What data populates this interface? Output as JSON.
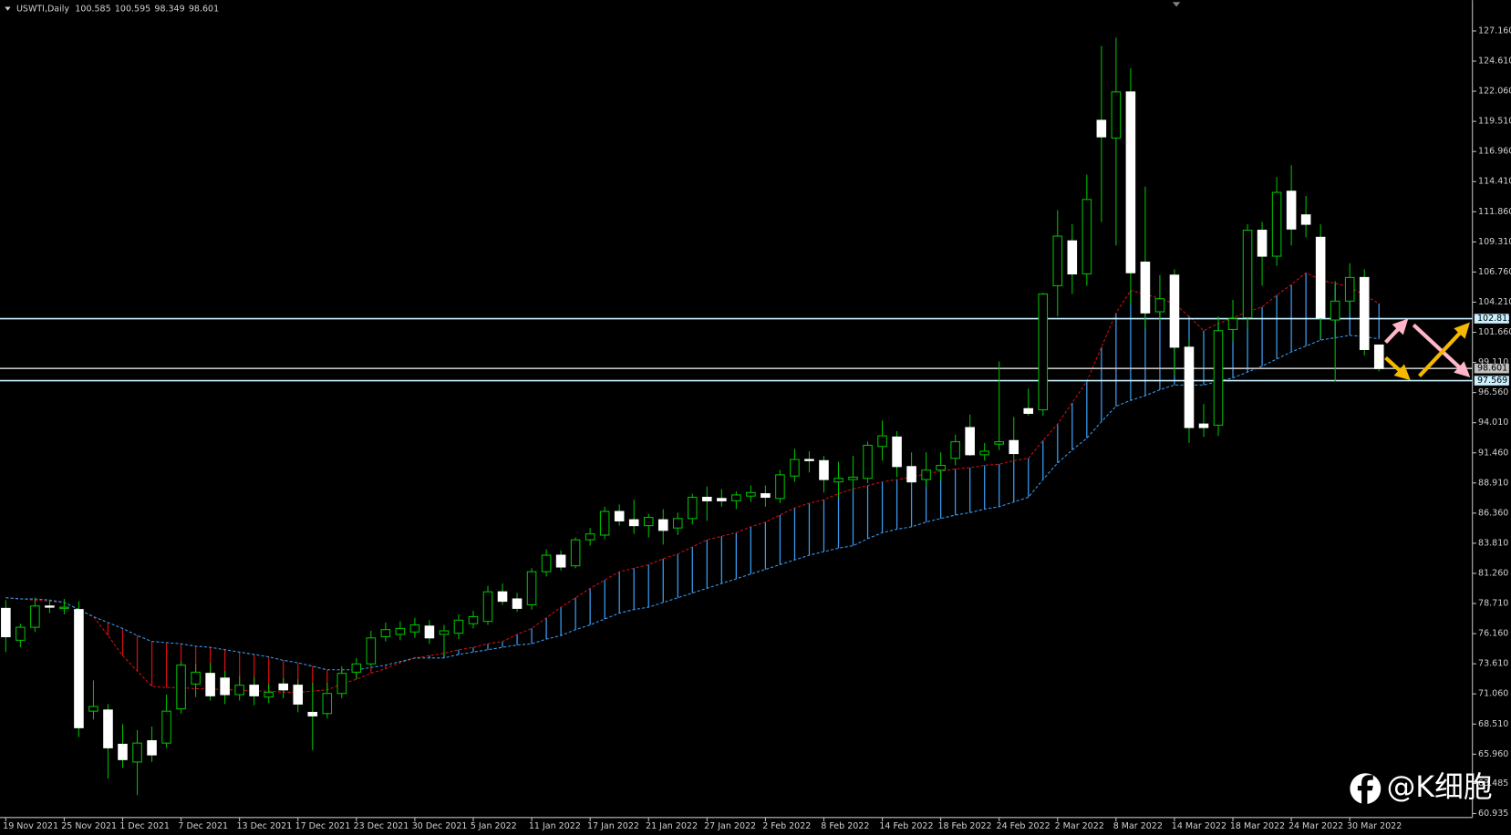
{
  "chart_data": {
    "type": "candlestick",
    "title": "USWTI,Daily",
    "watermark": "@K细胞",
    "categories": [
      "19 Nov 2021",
      null,
      null,
      null,
      "25 Nov 2021",
      null,
      null,
      null,
      "1 Dec 2021",
      null,
      null,
      null,
      "7 Dec 2021",
      null,
      null,
      null,
      "13 Dec 2021",
      null,
      null,
      null,
      "17 Dec 2021",
      null,
      null,
      null,
      "23 Dec 2021",
      null,
      null,
      null,
      "30 Dec 2021",
      null,
      null,
      null,
      "5 Jan 2022",
      null,
      null,
      null,
      "11 Jan 2022",
      null,
      null,
      null,
      "17 Jan 2022",
      null,
      null,
      null,
      "21 Jan 2022",
      null,
      null,
      null,
      "27 Jan 2022",
      null,
      null,
      null,
      "2 Feb 2022",
      null,
      null,
      null,
      "8 Feb 2022",
      null,
      null,
      null,
      "14 Feb 2022",
      null,
      null,
      null,
      "18 Feb 2022",
      null,
      null,
      null,
      "24 Feb 2022",
      null,
      null,
      null,
      "2 Mar 2022",
      null,
      null,
      null,
      "8 Mar 2022",
      null,
      null,
      null,
      "14 Mar 2022",
      null,
      null,
      null,
      "18 Mar 2022",
      null,
      null,
      null,
      "24 Mar 2022",
      null,
      null,
      null,
      "30 Mar 2022",
      null,
      null
    ],
    "open": [
      78.3,
      75.6,
      76.7,
      78.5,
      78.3,
      78.2,
      69.6,
      69.7,
      66.8,
      65.3,
      67.1,
      66.9,
      69.8,
      71.9,
      72.8,
      72.4,
      71.0,
      71.8,
      70.8,
      71.9,
      71.8,
      69.5,
      69.4,
      71.1,
      72.9,
      73.6,
      75.9,
      76.1,
      76.3,
      76.8,
      76.1,
      76.2,
      77.0,
      77.2,
      79.7,
      79.1,
      78.6,
      81.4,
      82.8,
      81.9,
      84.1,
      84.5,
      86.5,
      85.8,
      85.3,
      85.8,
      85.1,
      85.9,
      87.7,
      87.6,
      87.4,
      87.8,
      88.0,
      87.6,
      89.5,
      90.9,
      90.8,
      89.0,
      89.2,
      89.3,
      92.0,
      92.8,
      90.3,
      89.2,
      90.0,
      91.0,
      93.6,
      91.3,
      92.2,
      92.5,
      95.2,
      95.1,
      105.6,
      109.4,
      106.6,
      119.6,
      118.1,
      122.0,
      107.6,
      103.4,
      106.5,
      100.4,
      93.9,
      93.8,
      101.9,
      102.9,
      110.3,
      108.1,
      113.6,
      111.6,
      109.7,
      102.7,
      104.3,
      106.3,
      100.585
    ],
    "high": [
      79.0,
      77.0,
      79.2,
      79.0,
      79.1,
      78.9,
      72.2,
      70.2,
      68.5,
      68.0,
      68.3,
      71.0,
      73.8,
      73.6,
      73.7,
      73.0,
      72.6,
      72.5,
      71.9,
      72.4,
      72.3,
      72.0,
      72.0,
      73.4,
      74.1,
      76.4,
      77.1,
      77.2,
      77.5,
      77.3,
      76.9,
      77.8,
      78.1,
      80.2,
      80.4,
      79.6,
      81.7,
      83.3,
      83.2,
      84.3,
      85.1,
      86.9,
      87.1,
      87.5,
      86.3,
      86.7,
      86.4,
      88.0,
      88.6,
      88.4,
      88.2,
      88.7,
      88.7,
      90.0,
      91.8,
      91.6,
      91.2,
      90.7,
      91.2,
      92.4,
      94.2,
      93.3,
      91.5,
      91.5,
      91.5,
      93.0,
      94.7,
      92.3,
      99.2,
      94.5,
      96.9,
      105.0,
      112.0,
      110.8,
      115.0,
      125.9,
      126.6,
      124.0,
      114.0,
      106.5,
      107.0,
      101.0,
      95.6,
      103.0,
      104.4,
      110.8,
      111.0,
      114.8,
      115.8,
      113.2,
      110.8,
      106.0,
      107.5,
      107.0,
      100.595
    ],
    "low": [
      74.6,
      75.0,
      76.3,
      77.9,
      77.8,
      67.4,
      68.9,
      63.9,
      64.8,
      62.5,
      65.3,
      66.5,
      69.4,
      70.8,
      70.5,
      70.2,
      70.5,
      70.1,
      70.3,
      70.7,
      69.5,
      66.3,
      69.0,
      70.7,
      72.3,
      73.4,
      75.5,
      75.6,
      75.8,
      75.3,
      74.3,
      75.7,
      76.6,
      76.9,
      78.6,
      78.0,
      78.2,
      81.0,
      81.5,
      81.7,
      83.6,
      84.2,
      85.3,
      84.6,
      84.3,
      83.7,
      84.5,
      85.4,
      85.7,
      86.9,
      86.7,
      87.3,
      86.9,
      87.2,
      89.0,
      89.8,
      88.1,
      87.7,
      88.3,
      88.9,
      90.8,
      89.4,
      88.8,
      88.6,
      89.1,
      90.4,
      91.2,
      90.8,
      91.7,
      90.8,
      94.6,
      94.6,
      103.0,
      104.9,
      105.6,
      111.0,
      109.0,
      104.0,
      102.0,
      102.6,
      98.0,
      92.3,
      92.8,
      92.9,
      100.9,
      102.0,
      105.6,
      107.3,
      109.0,
      109.7,
      101.2,
      97.5,
      103.3,
      99.7,
      98.349
    ],
    "close": [
      75.9,
      76.7,
      78.5,
      78.4,
      78.4,
      68.2,
      70.0,
      66.5,
      65.5,
      66.9,
      65.9,
      69.6,
      73.5,
      72.9,
      70.9,
      71.0,
      71.8,
      70.9,
      71.2,
      71.4,
      70.2,
      69.2,
      71.1,
      72.8,
      73.6,
      75.8,
      76.5,
      76.6,
      76.9,
      75.8,
      76.4,
      77.3,
      77.6,
      79.7,
      78.9,
      78.3,
      81.4,
      82.8,
      81.8,
      84.1,
      84.6,
      86.5,
      85.7,
      85.3,
      86.0,
      84.9,
      85.9,
      87.7,
      87.4,
      87.4,
      87.9,
      88.1,
      87.7,
      89.6,
      90.9,
      90.8,
      89.2,
      89.3,
      89.4,
      92.1,
      92.9,
      90.3,
      89.0,
      90.0,
      90.4,
      92.4,
      91.3,
      91.6,
      92.4,
      91.4,
      94.8,
      104.9,
      109.8,
      106.6,
      112.9,
      118.2,
      122.0,
      106.7,
      103.3,
      104.5,
      100.4,
      93.6,
      93.6,
      101.8,
      102.8,
      110.3,
      108.1,
      113.5,
      110.4,
      110.8,
      102.9,
      104.3,
      106.3,
      100.2,
      98.601
    ],
    "up_color": "#000000",
    "down_color": "#ffffff",
    "wick_color": "#00c000",
    "overlays": [
      {
        "color": "#d01010",
        "values": [
          79.2,
          79.1,
          79.0,
          78.9,
          78.8,
          78.2,
          77.6,
          76.0,
          74.3,
          73.0,
          71.7,
          71.6,
          71.6,
          71.5,
          71.5,
          71.4,
          71.4,
          71.3,
          71.3,
          71.2,
          71.2,
          71.3,
          71.4,
          71.9,
          72.3,
          72.8,
          73.2,
          73.7,
          74.1,
          74.3,
          74.5,
          74.8,
          75.0,
          75.3,
          75.5,
          76.1,
          76.6,
          77.5,
          78.4,
          79.2,
          80.0,
          80.7,
          81.4,
          81.7,
          82.0,
          82.5,
          82.9,
          83.5,
          84.1,
          84.4,
          84.7,
          85.2,
          85.6,
          86.2,
          86.8,
          87.2,
          87.5,
          88.0,
          88.4,
          88.7,
          89.0,
          89.2,
          89.4,
          89.7,
          89.9,
          90.1,
          90.2,
          90.4,
          90.5,
          90.8,
          91.0,
          92.5,
          93.9,
          95.7,
          97.5,
          100.4,
          103.3,
          105.2,
          104.9,
          104.5,
          104.1,
          103.0,
          101.8,
          102.4,
          102.9,
          103.4,
          103.8,
          104.8,
          105.7,
          106.7,
          106.1,
          105.8,
          105.5,
          104.8,
          104.1
        ]
      },
      {
        "color": "#3a9bf0",
        "values": [
          79.2,
          79.1,
          79.1,
          79.0,
          78.8,
          78.2,
          77.6,
          77.1,
          76.6,
          76.0,
          75.5,
          75.4,
          75.3,
          75.1,
          75.0,
          74.8,
          74.6,
          74.4,
          74.2,
          73.9,
          73.7,
          73.4,
          73.1,
          73.1,
          73.1,
          73.3,
          73.5,
          73.8,
          74.1,
          74.1,
          74.1,
          74.4,
          74.6,
          74.8,
          75.0,
          75.2,
          75.3,
          75.7,
          76.0,
          76.5,
          76.9,
          77.4,
          77.9,
          78.2,
          78.4,
          78.8,
          79.2,
          79.6,
          80.0,
          80.4,
          80.8,
          81.2,
          81.6,
          82.0,
          82.4,
          82.8,
          83.1,
          83.4,
          83.6,
          84.2,
          84.7,
          85.0,
          85.2,
          85.6,
          85.9,
          86.2,
          86.4,
          86.7,
          86.9,
          87.3,
          87.7,
          89.2,
          90.6,
          91.7,
          92.7,
          94.1,
          95.4,
          95.9,
          96.3,
          96.8,
          97.2,
          97.2,
          97.2,
          97.5,
          97.8,
          98.3,
          98.8,
          99.4,
          100.0,
          100.5,
          101.0,
          101.2,
          101.4,
          101.3,
          101.1
        ]
      }
    ],
    "cloud_up_color": "#3a9bf0",
    "cloud_down_color": "#d01010",
    "hlines": [
      {
        "value": 102.813,
        "color": "#c8f0ff"
      },
      {
        "value": 98.601,
        "color": "#c0c0c0"
      },
      {
        "value": 97.569,
        "color": "#c8f0ff"
      }
    ],
    "ylim": [
      60.6,
      129.77
    ],
    "yticks": [
      {
        "value": 127.16,
        "label": "127.160"
      },
      {
        "value": 124.61,
        "label": "124.610"
      },
      {
        "value": 122.06,
        "label": "122.060"
      },
      {
        "value": 119.51,
        "label": "119.510"
      },
      {
        "value": 116.96,
        "label": "116.960"
      },
      {
        "value": 114.41,
        "label": "114.410"
      },
      {
        "value": 111.86,
        "label": "111.860"
      },
      {
        "value": 109.31,
        "label": "109.310"
      },
      {
        "value": 106.76,
        "label": "106.760"
      },
      {
        "value": 104.21,
        "label": "104.210"
      },
      {
        "value": 101.66,
        "label": "101.660"
      },
      {
        "value": 99.11,
        "label": "99.110"
      },
      {
        "value": 96.56,
        "label": "96.560"
      },
      {
        "value": 94.01,
        "label": "94.010"
      },
      {
        "value": 91.46,
        "label": "91.460"
      },
      {
        "value": 88.91,
        "label": "88.910"
      },
      {
        "value": 86.36,
        "label": "86.360"
      },
      {
        "value": 83.81,
        "label": "83.810"
      },
      {
        "value": 81.26,
        "label": "81.260"
      },
      {
        "value": 78.71,
        "label": "78.710"
      },
      {
        "value": 76.16,
        "label": "76.160"
      },
      {
        "value": 73.61,
        "label": "73.610"
      },
      {
        "value": 71.06,
        "label": "71.060"
      },
      {
        "value": 68.51,
        "label": "68.510"
      },
      {
        "value": 65.96,
        "label": "65.960"
      },
      63.485,
      60.935
    ]
  }
}
